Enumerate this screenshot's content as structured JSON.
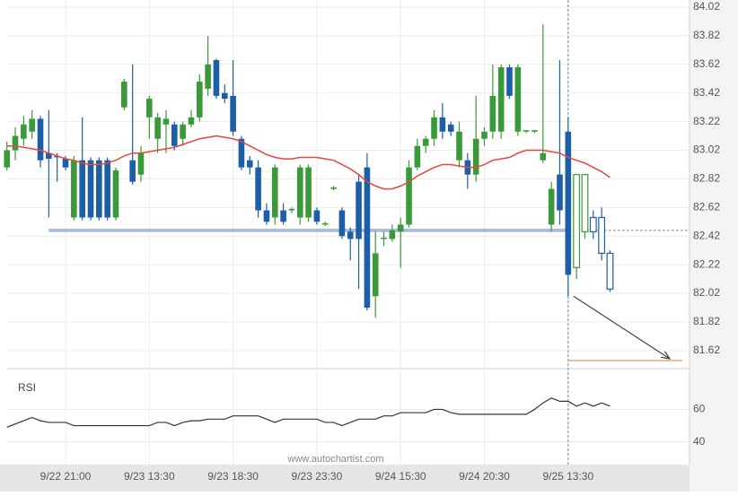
{
  "chart_data": [
    {
      "type": "candlestick",
      "categories": [
        null,
        null,
        null,
        null,
        null,
        null,
        null,
        "9/22 21:00",
        null,
        null,
        null,
        null,
        null,
        null,
        null,
        null,
        null,
        "9/23 13:30",
        null,
        null,
        null,
        null,
        null,
        null,
        null,
        null,
        null,
        "9/23 18:30",
        null,
        null,
        null,
        null,
        null,
        null,
        null,
        null,
        null,
        "9/23 23:30",
        null,
        null,
        null,
        null,
        null,
        null,
        null,
        null,
        null,
        "9/24 15:30",
        null,
        null,
        null,
        null,
        null,
        null,
        null,
        null,
        null,
        "9/24 20:30",
        null,
        null,
        null,
        null,
        null,
        null,
        null,
        null,
        null,
        "9/25 13:30",
        null,
        null,
        null,
        null,
        null
      ],
      "open": [
        82.9,
        83.02,
        83.1,
        83.15,
        83.24,
        83.0,
        82.98,
        82.96,
        82.55,
        82.95,
        82.95,
        82.95,
        82.95,
        82.55,
        83.32,
        82.95,
        82.85,
        83.25,
        83.1,
        83.2,
        83.2,
        83.1,
        83.2,
        83.25,
        83.45,
        83.65,
        83.42,
        83.4,
        83.1,
        82.95,
        82.9,
        82.6,
        82.55,
        82.6,
        82.6,
        82.55,
        82.55,
        82.6,
        82.5,
        82.75,
        82.6,
        82.45,
        82.8,
        82.9,
        82.0,
        82.4,
        82.4,
        82.45,
        82.5,
        82.9,
        83.05,
        83.1,
        83.25,
        83.2,
        82.95,
        82.95,
        82.85,
        83.1,
        83.15,
        83.15,
        83.6,
        83.15,
        83.15,
        83.15,
        82.95,
        82.5,
        82.85,
        83.15,
        82.2,
        82.45,
        82.55,
        82.55,
        82.3
      ],
      "high": [
        83.08,
        83.18,
        83.26,
        83.3,
        83.26,
        83.3,
        83.0,
        82.98,
        82.98,
        83.25,
        82.97,
        82.97,
        82.97,
        82.9,
        83.52,
        83.62,
        83.05,
        83.4,
        83.28,
        83.3,
        83.22,
        83.22,
        83.3,
        83.55,
        83.82,
        83.66,
        83.48,
        83.65,
        83.12,
        82.98,
        82.95,
        82.65,
        82.92,
        82.65,
        82.62,
        82.92,
        82.92,
        82.62,
        82.52,
        82.77,
        82.62,
        82.48,
        82.85,
        83.0,
        82.45,
        82.45,
        82.5,
        82.55,
        82.95,
        83.1,
        83.12,
        83.3,
        83.35,
        83.22,
        83.22,
        83.0,
        83.4,
        83.18,
        83.62,
        83.62,
        83.62,
        83.62,
        83.16,
        83.16,
        83.9,
        82.8,
        83.65,
        83.25,
        82.85,
        82.85,
        82.6,
        82.62,
        82.32
      ],
      "low": [
        82.88,
        82.95,
        83.05,
        83.1,
        82.9,
        82.55,
        82.8,
        82.88,
        82.53,
        82.53,
        82.53,
        82.53,
        82.53,
        82.53,
        83.3,
        82.78,
        82.8,
        83.1,
        83.0,
        83.0,
        83.02,
        83.05,
        83.18,
        83.22,
        83.4,
        83.38,
        83.35,
        83.12,
        82.88,
        82.85,
        82.55,
        82.5,
        82.5,
        82.5,
        82.58,
        82.5,
        82.52,
        82.5,
        82.49,
        82.74,
        82.4,
        82.25,
        82.05,
        81.9,
        81.85,
        82.35,
        82.38,
        82.2,
        82.48,
        82.88,
        83.0,
        83.05,
        83.1,
        83.12,
        82.9,
        82.75,
        82.8,
        83.05,
        83.1,
        83.1,
        83.38,
        83.12,
        83.14,
        83.14,
        82.93,
        82.45,
        82.5,
        82.0,
        82.12,
        82.4,
        82.4,
        82.25,
        82.03
      ],
      "close": [
        83.02,
        83.12,
        83.2,
        83.24,
        82.95,
        82.96,
        82.97,
        82.9,
        82.95,
        82.55,
        82.55,
        82.55,
        82.55,
        82.88,
        83.5,
        82.8,
        83.0,
        83.38,
        83.25,
        83.24,
        83.05,
        83.2,
        83.25,
        83.5,
        83.62,
        83.4,
        83.38,
        83.15,
        82.9,
        82.9,
        82.6,
        82.52,
        82.9,
        82.52,
        82.61,
        82.9,
        82.9,
        82.52,
        82.51,
        82.76,
        82.42,
        82.4,
        82.4,
        81.92,
        82.3,
        82.41,
        82.46,
        82.5,
        82.9,
        83.05,
        83.1,
        83.25,
        83.15,
        83.15,
        83.15,
        82.85,
        83.1,
        83.15,
        83.4,
        83.6,
        83.4,
        83.6,
        83.16,
        83.16,
        83.0,
        82.75,
        82.6,
        82.15,
        82.85,
        82.85,
        82.45,
        82.3,
        82.05
      ],
      "up_color": "#3a9a3a",
      "down_color": "#1c5ea8",
      "moving_average": {
        "color": "#e8453c",
        "values": [
          83.05,
          83.05,
          83.04,
          83.03,
          83.02,
          83.0,
          82.98,
          82.96,
          82.95,
          82.93,
          82.92,
          82.92,
          82.93,
          82.95,
          82.98,
          83.0,
          83.0,
          83.01,
          83.02,
          83.03,
          83.04,
          83.06,
          83.08,
          83.1,
          83.11,
          83.12,
          83.11,
          83.1,
          83.08,
          83.05,
          83.02,
          82.99,
          82.97,
          82.96,
          82.96,
          82.97,
          82.97,
          82.97,
          82.96,
          82.95,
          82.92,
          82.89,
          82.85,
          82.8,
          82.77,
          82.75,
          82.75,
          82.77,
          82.8,
          82.84,
          82.87,
          82.9,
          82.92,
          82.92,
          82.91,
          82.9,
          82.9,
          82.92,
          82.95,
          82.96,
          82.97,
          83.0,
          83.02,
          83.02,
          83.02,
          83.01,
          83.0,
          82.97,
          82.95,
          82.93,
          82.9,
          82.87,
          82.83
        ]
      },
      "levels": [
        {
          "value": 82.46,
          "color": "#6b8fc8"
        },
        {
          "value": 81.55,
          "color": "#f2a27a"
        }
      ],
      "ylim": [
        81.5,
        84.07
      ],
      "yticks": [
        84.02,
        83.82,
        83.62,
        83.42,
        83.22,
        83.02,
        82.82,
        82.62,
        82.42,
        82.22,
        82.02,
        81.82,
        81.62
      ],
      "grid": true,
      "watermark": "www.autochartist.com"
    },
    {
      "type": "line",
      "title": "RSI",
      "color": "#333333",
      "values": [
        49,
        51,
        53,
        55,
        53,
        52,
        52,
        52,
        50,
        50,
        50,
        50,
        50,
        50,
        50,
        50,
        50,
        50,
        52,
        52,
        50,
        52,
        53,
        53,
        54,
        54,
        54,
        56,
        56,
        56,
        56,
        54,
        52,
        54,
        54,
        54,
        54,
        54,
        52,
        52,
        50,
        52,
        54,
        54,
        54,
        56,
        56,
        58,
        58,
        58,
        58,
        60,
        60,
        58,
        57,
        57,
        57,
        57,
        57,
        57,
        57,
        57,
        57,
        60,
        64,
        67,
        65,
        65,
        62,
        64,
        62,
        64,
        62
      ],
      "ylim": [
        26,
        84
      ],
      "yticks": [
        60,
        40
      ]
    }
  ]
}
